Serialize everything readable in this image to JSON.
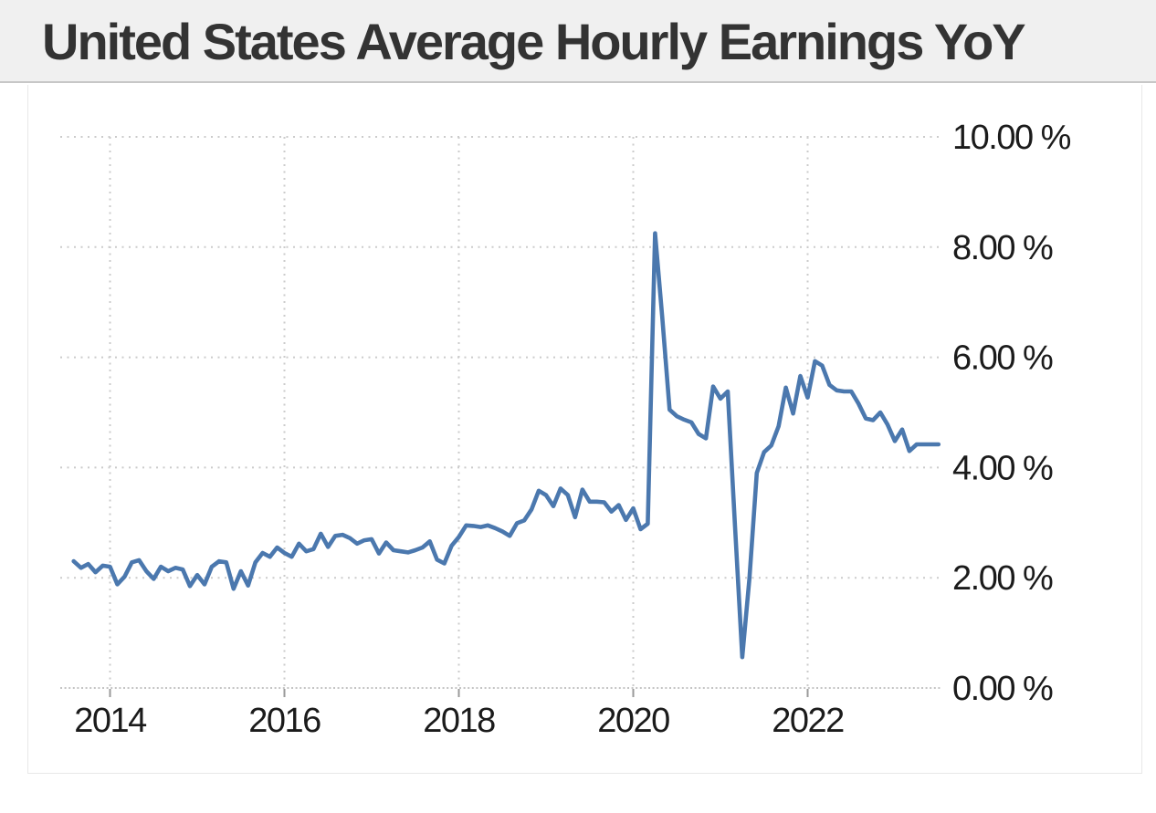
{
  "header": {
    "title": "United States Average Hourly Earnings YoY"
  },
  "colors": {
    "titlebar_bg": "#f0f0f0",
    "titlebar_border": "#c7c7c7",
    "title_text": "#333333",
    "card_border": "#e8e8e8",
    "background": "#ffffff",
    "grid": "#cbcbcb",
    "axis_dots": "#c4c4c4",
    "tick_mark": "#9a9a9a",
    "axis_label": "#1b1b1b",
    "line": "#4b78ae"
  },
  "chart_data": {
    "type": "line",
    "title": "United States Average Hourly Earnings YoY",
    "unit": "%",
    "frequency": "monthly",
    "x_start": "2013-08",
    "x_end": "2023-07",
    "ylim": [
      0,
      10
    ],
    "grid": "dotted",
    "legend": "none",
    "y_ticks": [
      {
        "value": 10,
        "label": "10.00 %"
      },
      {
        "value": 8,
        "label": "8.00 %"
      },
      {
        "value": 6,
        "label": "6.00 %"
      },
      {
        "value": 4,
        "label": "4.00 %"
      },
      {
        "value": 2,
        "label": "2.00 %"
      },
      {
        "value": 0,
        "label": "0.00 %"
      }
    ],
    "x_ticks": [
      {
        "year": 2014,
        "label": "2014"
      },
      {
        "year": 2016,
        "label": "2016"
      },
      {
        "year": 2018,
        "label": "2018"
      },
      {
        "year": 2020,
        "label": "2020"
      },
      {
        "year": 2022,
        "label": "2022"
      }
    ],
    "values": [
      2.3,
      2.18,
      2.25,
      2.1,
      2.22,
      2.2,
      1.88,
      2.02,
      2.28,
      2.32,
      2.12,
      1.98,
      2.2,
      2.12,
      2.18,
      2.15,
      1.85,
      2.05,
      1.88,
      2.2,
      2.3,
      2.28,
      1.8,
      2.12,
      1.86,
      2.28,
      2.45,
      2.38,
      2.55,
      2.45,
      2.38,
      2.62,
      2.48,
      2.52,
      2.8,
      2.56,
      2.76,
      2.78,
      2.72,
      2.62,
      2.68,
      2.7,
      2.44,
      2.64,
      2.5,
      2.48,
      2.46,
      2.5,
      2.55,
      2.66,
      2.33,
      2.26,
      2.58,
      2.74,
      2.95,
      2.94,
      2.92,
      2.95,
      2.9,
      2.84,
      2.76,
      2.99,
      3.04,
      3.24,
      3.58,
      3.5,
      3.3,
      3.62,
      3.5,
      3.1,
      3.6,
      3.38,
      3.38,
      3.37,
      3.2,
      3.32,
      3.05,
      3.26,
      2.88,
      2.98,
      8.25,
      6.72,
      5.05,
      4.93,
      4.87,
      4.82,
      4.61,
      4.53,
      5.47,
      5.25,
      5.38,
      2.95,
      0.56,
      2.0,
      3.9,
      4.28,
      4.4,
      4.75,
      5.45,
      4.98,
      5.66,
      5.27,
      5.93,
      5.85,
      5.5,
      5.4,
      5.38,
      5.38,
      5.16,
      4.89,
      4.86,
      5.0,
      4.78,
      4.48,
      4.69,
      4.3,
      4.42,
      4.42,
      4.42,
      4.42
    ]
  }
}
